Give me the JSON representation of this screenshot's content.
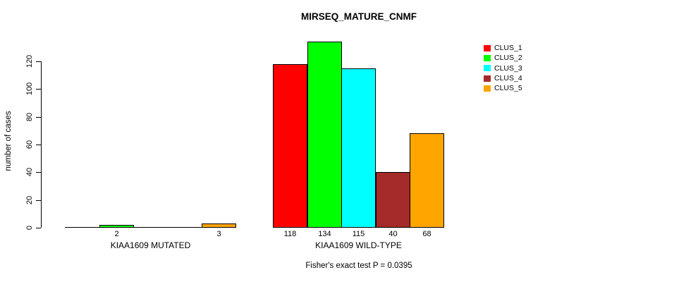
{
  "title": "MIRSEQ_MATURE_CNMF",
  "chart_data": {
    "type": "bar",
    "title": "MIRSEQ_MATURE_CNMF",
    "xlabel": "",
    "ylabel": "number of cases",
    "ylim": [
      0,
      140
    ],
    "yticks": [
      0,
      20,
      40,
      60,
      80,
      100,
      120
    ],
    "grid": false,
    "legend_position": "top-right",
    "series": [
      {
        "name": "CLUS_1",
        "color": "#FF0000",
        "values": [
          0,
          118
        ]
      },
      {
        "name": "CLUS_2",
        "color": "#00FF00",
        "values": [
          2,
          134
        ]
      },
      {
        "name": "CLUS_3",
        "color": "#00FFFF",
        "values": [
          0,
          115
        ]
      },
      {
        "name": "CLUS_4",
        "color": "#A52A2A",
        "values": [
          0,
          40
        ]
      },
      {
        "name": "CLUS_5",
        "color": "#FFA500",
        "values": [
          3,
          68
        ]
      }
    ],
    "categories": [
      "KIAA1609 MUTATED",
      "KIAA1609 WILD-TYPE"
    ],
    "bar_value_labels_shown_for_nonzero_only": true,
    "annotation": "Fisher's exact test P = 0.0395"
  },
  "legend": {
    "items": [
      {
        "label": "CLUS_1",
        "color": "#FF0000"
      },
      {
        "label": "CLUS_2",
        "color": "#00FF00"
      },
      {
        "label": "CLUS_3",
        "color": "#00FFFF"
      },
      {
        "label": "CLUS_4",
        "color": "#A52A2A"
      },
      {
        "label": "CLUS_5",
        "color": "#FFA500"
      }
    ]
  }
}
